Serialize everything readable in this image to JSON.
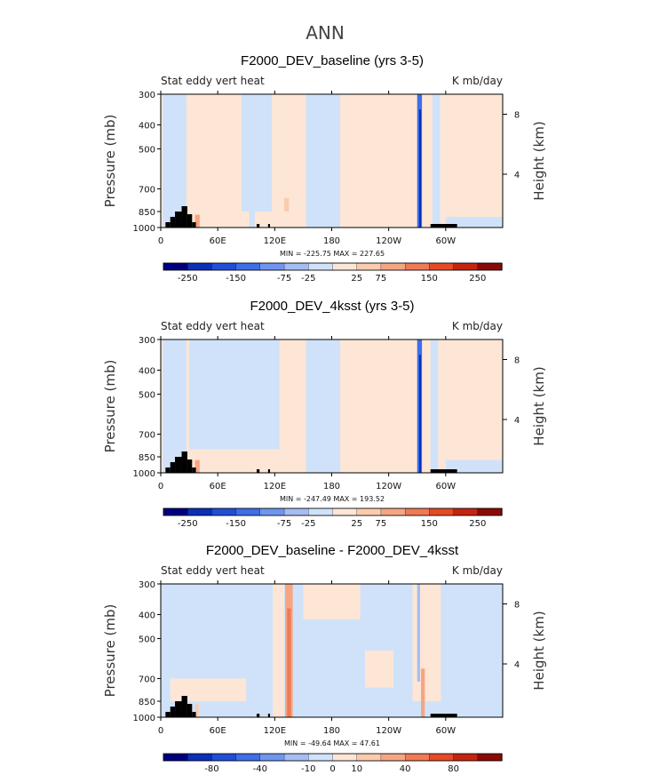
{
  "page": {
    "title": "ANN"
  },
  "colors": {
    "scale": [
      "#00007f",
      "#0a2fb8",
      "#1f4fd9",
      "#3d6fe8",
      "#6f95ef",
      "#a4bef4",
      "#cfe2fa",
      "#fde6d5",
      "#fbcbb0",
      "#f6a582",
      "#ef7a55",
      "#e64a25",
      "#c4250f",
      "#8a0a05"
    ],
    "background": "#ffffff",
    "land": "#000000"
  },
  "chart_data": [
    {
      "type": "heatmap",
      "title": "F2000_DEV_baseline (yrs 3-5)",
      "left_label": "Stat eddy vert heat",
      "right_label": "K mb/day",
      "ylabel": "Pressure (mb)",
      "ylabel_right": "Height (km)",
      "y_ticks": [
        "300",
        "400",
        "500",
        "700",
        "850",
        "1000"
      ],
      "y_right_ticks": [
        "8",
        "4"
      ],
      "x_ticks": [
        "0",
        "60E",
        "120E",
        "180",
        "120W",
        "60W"
      ],
      "min": "-225.75",
      "max": "227.65",
      "minmax_text": "MIN = -225.75   MAX = 227.65",
      "colorbar_labels": [
        "-250",
        "-150",
        "-75",
        "-25",
        "25",
        "75",
        "150",
        "250"
      ],
      "features": [
        {
          "lon": 2,
          "width": 25,
          "class": -1,
          "from": 300,
          "to": 1000
        },
        {
          "lon": 85,
          "width": 32,
          "class": -1,
          "from": 300,
          "to": 850
        },
        {
          "lon": 93,
          "width": 6,
          "class": -1,
          "from": 300,
          "to": 1000
        },
        {
          "lon": 131,
          "width": 5,
          "class": 1,
          "from": 300,
          "to": 1000
        },
        {
          "lon": 153,
          "width": 36,
          "class": -1,
          "from": 300,
          "to": 1000
        },
        {
          "lon": 270,
          "width": 5,
          "class": -4,
          "from": 300,
          "to": 1000
        },
        {
          "lon": 272,
          "width": 2,
          "class": -6,
          "from": 350,
          "to": 1000
        },
        {
          "lon": 286,
          "width": 8,
          "class": -1,
          "from": 300,
          "to": 1000
        },
        {
          "lon": 300,
          "width": 60,
          "class": -1,
          "from": 900,
          "to": 1000
        },
        {
          "lon": 130,
          "width": 5,
          "class": 2,
          "from": 760,
          "to": 850
        },
        {
          "lon": 36,
          "width": 5,
          "class": 3,
          "from": 880,
          "to": 1000
        }
      ]
    },
    {
      "type": "heatmap",
      "title": "F2000_DEV_4ksst (yrs 3-5)",
      "left_label": "Stat eddy vert heat",
      "right_label": "K mb/day",
      "ylabel": "Pressure (mb)",
      "ylabel_right": "Height (km)",
      "y_ticks": [
        "300",
        "400",
        "500",
        "700",
        "850",
        "1000"
      ],
      "y_right_ticks": [
        "8",
        "4"
      ],
      "x_ticks": [
        "0",
        "60E",
        "120E",
        "180",
        "120W",
        "60W"
      ],
      "min": "-247.49",
      "max": "193.52",
      "minmax_text": "MIN = -247.49   MAX = 193.52",
      "colorbar_labels": [
        "-250",
        "-150",
        "-75",
        "-25",
        "25",
        "75",
        "150",
        "250"
      ],
      "features": [
        {
          "lon": 2,
          "width": 25,
          "class": -1,
          "from": 300,
          "to": 1000
        },
        {
          "lon": 30,
          "width": 95,
          "class": -1,
          "from": 300,
          "to": 800
        },
        {
          "lon": 153,
          "width": 36,
          "class": -1,
          "from": 300,
          "to": 1000
        },
        {
          "lon": 270,
          "width": 5,
          "class": -4,
          "from": 300,
          "to": 1000
        },
        {
          "lon": 272,
          "width": 2,
          "class": -6,
          "from": 350,
          "to": 1000
        },
        {
          "lon": 284,
          "width": 8,
          "class": -1,
          "from": 300,
          "to": 1000
        },
        {
          "lon": 300,
          "width": 60,
          "class": -1,
          "from": 880,
          "to": 1000
        },
        {
          "lon": 36,
          "width": 5,
          "class": 3,
          "from": 880,
          "to": 1000
        }
      ]
    },
    {
      "type": "heatmap",
      "title": "F2000_DEV_baseline - F2000_DEV_4ksst",
      "left_label": "Stat eddy vert heat",
      "right_label": "K mb/day",
      "ylabel": "Pressure (mb)",
      "ylabel_right": "Height (km)",
      "y_ticks": [
        "300",
        "400",
        "500",
        "700",
        "850",
        "1000"
      ],
      "y_right_ticks": [
        "8",
        "4"
      ],
      "x_ticks": [
        "0",
        "60E",
        "120E",
        "180",
        "120W",
        "60W"
      ],
      "min": "-49.64",
      "max": "47.61",
      "minmax_text": "MIN = -49.64   MAX = 47.61",
      "colorbar_labels": [
        "-80",
        "-40",
        "-10",
        "0",
        "10",
        "40",
        "80"
      ],
      "features": [
        {
          "lon": 0,
          "width": 360,
          "class": -1,
          "from": 300,
          "to": 1000
        },
        {
          "lon": 118,
          "width": 12,
          "class": 1,
          "from": 300,
          "to": 1000
        },
        {
          "lon": 131,
          "width": 8,
          "class": 3,
          "from": 300,
          "to": 1000
        },
        {
          "lon": 133,
          "width": 4,
          "class": 4,
          "from": 380,
          "to": 1000
        },
        {
          "lon": 265,
          "width": 30,
          "class": 1,
          "from": 300,
          "to": 850
        },
        {
          "lon": 270,
          "width": 3,
          "class": -2,
          "from": 300,
          "to": 720
        },
        {
          "lon": 274,
          "width": 4,
          "class": 3,
          "from": 650,
          "to": 1000
        },
        {
          "lon": 10,
          "width": 80,
          "class": 1,
          "from": 700,
          "to": 850
        },
        {
          "lon": 150,
          "width": 60,
          "class": 1,
          "from": 300,
          "to": 420
        },
        {
          "lon": 215,
          "width": 30,
          "class": 1,
          "from": 560,
          "to": 760
        },
        {
          "lon": 36,
          "width": 4,
          "class": 2,
          "from": 880,
          "to": 1000
        }
      ]
    }
  ]
}
